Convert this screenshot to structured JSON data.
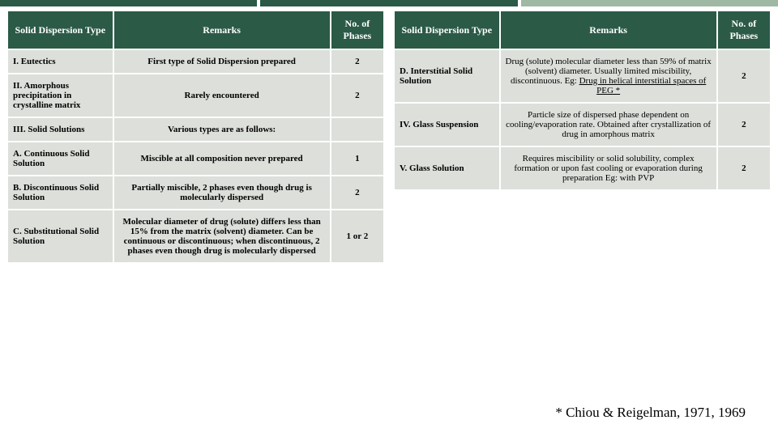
{
  "topbar": {
    "colors": [
      "#2b5a47",
      "#2b5a47",
      "#9fb8a4"
    ]
  },
  "header": {
    "bg": "#2b5a47",
    "fg": "#ffffff"
  },
  "cell": {
    "bg": "#dcdfda",
    "fg": "#000000"
  },
  "columns": {
    "type": "Solid Dispersion Type",
    "remarks": "Remarks",
    "phases": "No. of Phases"
  },
  "left_rows": [
    {
      "type": "I. Eutectics",
      "remarks": "First type of Solid Dispersion prepared",
      "phases": "2"
    },
    {
      "type": "II. Amorphous precipitation in crystalline matrix",
      "remarks": "Rarely encountered",
      "phases": "2"
    },
    {
      "type": "III. Solid Solutions",
      "remarks": "Various types are as follows:",
      "phases": ""
    },
    {
      "type": "A. Continuous Solid Solution",
      "remarks": "Miscible at all composition never prepared",
      "phases": "1"
    },
    {
      "type": "B. Discontinuous Solid Solution",
      "remarks": "Partially miscible, 2 phases even though drug is molecularly dispersed",
      "phases": "2"
    },
    {
      "type": "C. Substitutional Solid Solution",
      "remarks": "Molecular diameter of drug (solute) differs less than 15% from the matrix (solvent) diameter. Can be continuous or discontinuous; when discontinuous, 2 phases even though drug is molecularly dispersed",
      "phases": "1 or 2"
    }
  ],
  "right_rows": [
    {
      "type": "D. Interstitial Solid Solution",
      "remarks_pre": "Drug (solute) molecular diameter less than 59% of matrix (solvent) diameter. Usually limited miscibility, discontinuous. Eg: ",
      "remarks_u": "Drug in helical interstitial spaces of PEG *",
      "phases": "2"
    },
    {
      "type": "IV. Glass Suspension",
      "remarks_pre": "Particle size of dispersed phase dependent on cooling/evaporation rate. Obtained after crystallization of drug in amorphous matrix",
      "remarks_u": "",
      "phases": "2"
    },
    {
      "type": "V. Glass Solution",
      "remarks_pre": "Requires miscibility or solid solubility, complex formation or upon fast cooling or evaporation during preparation Eg: with PVP",
      "remarks_u": "",
      "phases": "2"
    }
  ],
  "footnote": "* Chiou & Reigelman, 1971, 1969"
}
